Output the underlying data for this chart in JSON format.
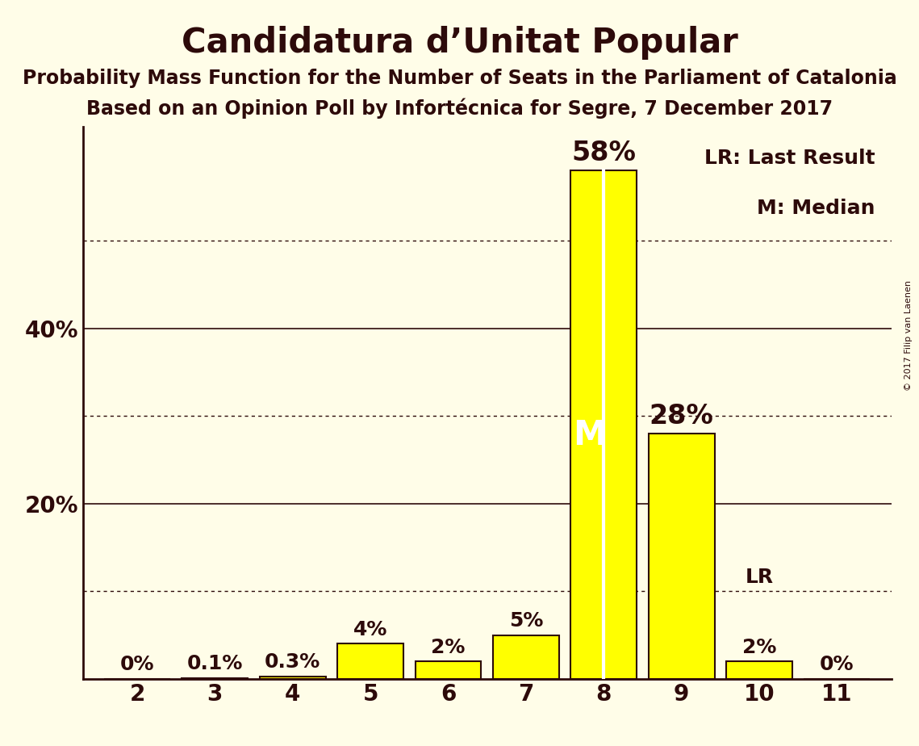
{
  "title": "Candidatura d’Unitat Popular",
  "subtitle1": "Probability Mass Function for the Number of Seats in the Parliament of Catalonia",
  "subtitle2": "Based on an Opinion Poll by Infortécnica for Segre, 7 December 2017",
  "copyright": "© 2017 Filip van Laenen",
  "seats": [
    2,
    3,
    4,
    5,
    6,
    7,
    8,
    9,
    10,
    11
  ],
  "probabilities": [
    0.0,
    0.1,
    0.3,
    4.0,
    2.0,
    5.0,
    58.0,
    28.0,
    2.0,
    0.0
  ],
  "bar_color": "#ffff00",
  "bar_edge_color": "#2d0a0a",
  "background_color": "#fffde8",
  "text_color": "#2d0a0a",
  "median_seat": 8,
  "last_result_seat": 10,
  "ylim": [
    0,
    63
  ],
  "yticks_solid": [
    20,
    40
  ],
  "yticks_dotted": [
    10,
    30,
    50
  ],
  "legend_lr": "LR: Last Result",
  "legend_m": "M: Median",
  "title_fontsize": 30,
  "subtitle_fontsize": 17,
  "axis_label_fontsize": 20,
  "bar_label_fontsize_small": 18,
  "bar_label_fontsize_large": 24,
  "legend_fontsize": 18,
  "median_label_fontsize": 30,
  "median_line_color": "#ffffff",
  "median_label_color": "#ffffff"
}
